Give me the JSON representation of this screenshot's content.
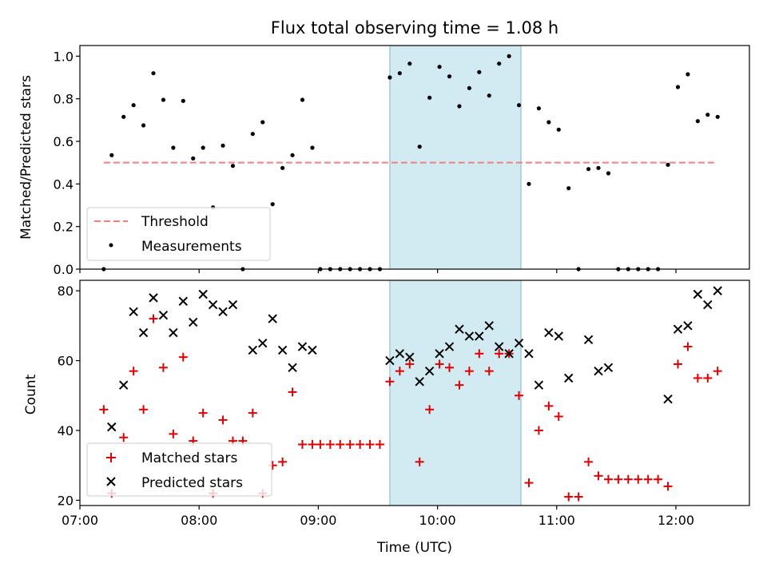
{
  "title": "Flux total observing time = 1.08 h",
  "colors": {
    "threshold": "#f08080",
    "measurement": "#000000",
    "matched": "#e00000",
    "predicted": "#000000",
    "shade": "#add8e6"
  },
  "chart_data": [
    {
      "type": "scatter",
      "panel": "top",
      "xlabel": "",
      "ylabel": "Matched/Predicted stars",
      "xlim": [
        "07:00",
        "12:37"
      ],
      "ylim": [
        0,
        1.05
      ],
      "x_ticks": [
        "07:00",
        "08:00",
        "09:00",
        "10:00",
        "11:00",
        "12:00"
      ],
      "y_ticks": [
        "0.0",
        "0.2",
        "0.4",
        "0.6",
        "0.8",
        "1.0"
      ],
      "shaded_region": [
        "09:36",
        "10:42"
      ],
      "legend_position": "lower left",
      "series": [
        {
          "name": "Threshold",
          "style": "dashed line",
          "x": [
            "07:12",
            "12:20"
          ],
          "y": [
            0.5,
            0.5
          ]
        },
        {
          "name": "Measurements",
          "style": "dot",
          "x": [
            "07:12",
            "07:16",
            "07:22",
            "07:27",
            "07:32",
            "07:37",
            "07:42",
            "07:47",
            "07:52",
            "07:57",
            "08:02",
            "08:07",
            "08:12",
            "08:17",
            "08:22",
            "08:27",
            "08:32",
            "08:37",
            "08:42",
            "08:47",
            "08:52",
            "08:57",
            "09:01",
            "09:06",
            "09:11",
            "09:16",
            "09:21",
            "09:26",
            "09:31",
            "09:36",
            "09:41",
            "09:46",
            "09:51",
            "09:56",
            "10:01",
            "10:06",
            "10:11",
            "10:16",
            "10:21",
            "10:26",
            "10:31",
            "10:36",
            "10:41",
            "10:46",
            "10:51",
            "10:56",
            "11:01",
            "11:06",
            "11:11",
            "11:16",
            "11:21",
            "11:26",
            "11:31",
            "11:36",
            "11:41",
            "11:46",
            "11:51",
            "11:56",
            "12:01",
            "12:06",
            "12:11",
            "12:16",
            "12:21"
          ],
          "y": [
            0.0,
            0.535,
            0.715,
            0.77,
            0.675,
            0.92,
            0.795,
            0.57,
            0.79,
            0.52,
            0.57,
            0.29,
            0.58,
            0.485,
            0.0,
            0.635,
            0.69,
            0.305,
            0.475,
            0.535,
            0.795,
            0.57,
            0.0,
            0.0,
            0.0,
            0.0,
            0.0,
            0.0,
            0.0,
            0.9,
            0.92,
            0.965,
            0.575,
            0.805,
            0.95,
            0.905,
            0.765,
            0.85,
            0.925,
            0.815,
            0.965,
            1.0,
            0.77,
            0.4,
            0.755,
            0.69,
            0.655,
            0.38,
            0.0,
            0.47,
            0.475,
            0.45,
            0.0,
            0.0,
            0.0,
            0.0,
            0.0,
            0.49,
            0.855,
            0.915,
            0.695,
            0.725,
            0.715
          ]
        }
      ]
    },
    {
      "type": "scatter",
      "panel": "bottom",
      "xlabel": "Time (UTC)",
      "ylabel": "Count",
      "xlim": [
        "07:00",
        "12:37"
      ],
      "ylim": [
        18.5,
        83
      ],
      "x_ticks": [
        "07:00",
        "08:00",
        "09:00",
        "10:00",
        "11:00",
        "12:00"
      ],
      "y_ticks": [
        "20",
        "40",
        "60",
        "80"
      ],
      "shaded_region": [
        "09:36",
        "10:42"
      ],
      "legend_position": "lower left",
      "series": [
        {
          "name": "Matched stars",
          "marker": "plus",
          "x": [
            "07:12",
            "07:16",
            "07:22",
            "07:27",
            "07:32",
            "07:37",
            "07:42",
            "07:47",
            "07:52",
            "07:57",
            "08:02",
            "08:07",
            "08:12",
            "08:17",
            "08:22",
            "08:27",
            "08:32",
            "08:37",
            "08:42",
            "08:47",
            "08:52",
            "08:57",
            "09:01",
            "09:06",
            "09:11",
            "09:16",
            "09:21",
            "09:26",
            "09:31",
            "09:36",
            "09:41",
            "09:46",
            "09:51",
            "09:56",
            "10:01",
            "10:06",
            "10:11",
            "10:16",
            "10:21",
            "10:26",
            "10:31",
            "10:36",
            "10:41",
            "10:46",
            "10:51",
            "10:56",
            "11:01",
            "11:06",
            "11:11",
            "11:16",
            "11:21",
            "11:26",
            "11:31",
            "11:36",
            "11:41",
            "11:46",
            "11:51",
            "11:56",
            "12:01",
            "12:06",
            "12:11",
            "12:16",
            "12:21"
          ],
          "y": [
            46,
            22,
            38,
            57,
            46,
            72,
            58,
            39,
            61,
            37,
            45,
            22,
            43,
            37,
            37,
            45,
            22,
            30,
            31,
            51,
            36,
            36,
            36,
            36,
            36,
            36,
            36,
            36,
            36,
            54,
            57,
            59,
            31,
            46,
            59,
            58,
            53,
            57,
            62,
            57,
            62,
            62,
            50,
            25,
            40,
            47,
            44,
            21,
            21,
            31,
            27,
            26,
            26,
            26,
            26,
            26,
            26,
            24,
            59,
            64,
            55,
            55,
            57
          ]
        },
        {
          "name": "Predicted stars",
          "marker": "x",
          "x": [
            "07:12",
            "07:16",
            "07:22",
            "07:27",
            "07:32",
            "07:37",
            "07:42",
            "07:47",
            "07:52",
            "07:57",
            "08:02",
            "08:07",
            "08:12",
            "08:17",
            "08:27",
            "08:32",
            "08:37",
            "08:42",
            "08:47",
            "08:52",
            "08:57",
            "09:36",
            "09:41",
            "09:46",
            "09:51",
            "09:56",
            "10:01",
            "10:06",
            "10:11",
            "10:16",
            "10:21",
            "10:26",
            "10:31",
            "10:36",
            "10:41",
            "10:46",
            "10:51",
            "10:56",
            "11:01",
            "11:06",
            "11:16",
            "11:21",
            "11:26",
            "11:56",
            "12:01",
            "12:06",
            "12:11",
            "12:16",
            "12:21"
          ],
          "y": [
            null,
            41,
            53,
            74,
            68,
            78,
            73,
            68,
            77,
            71,
            79,
            76,
            74,
            76,
            63,
            65,
            72,
            63,
            58,
            64,
            63,
            60,
            62,
            61,
            54,
            57,
            62,
            64,
            69,
            67,
            67,
            70,
            64,
            62,
            65,
            62,
            53,
            68,
            67,
            55,
            66,
            57,
            58,
            49,
            69,
            70,
            79,
            76,
            80
          ]
        }
      ]
    }
  ]
}
